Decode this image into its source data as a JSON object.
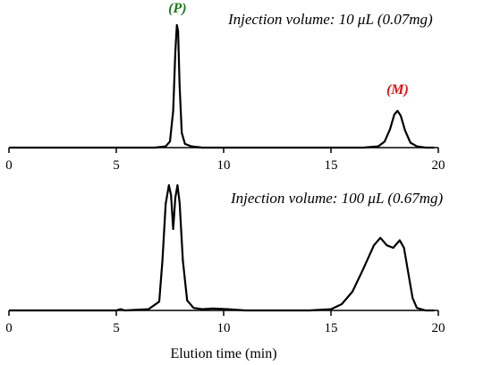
{
  "chart_data": [
    {
      "type": "line",
      "annotation": "Injection volume: 10 μL (0.07mg)",
      "xlim": [
        0,
        20
      ],
      "x_ticks": [
        0,
        5,
        10,
        15,
        20
      ],
      "peak_labels": [
        {
          "text": "(P)",
          "x": 7.85,
          "color": "#1a7a1a"
        },
        {
          "text": "(M)",
          "x": 18.1,
          "color": "#e01010"
        }
      ],
      "series": [
        {
          "x": [
            0,
            6.8,
            7.3,
            7.5,
            7.65,
            7.75,
            7.82,
            7.88,
            7.95,
            8.05,
            8.2,
            8.5,
            9.0,
            12,
            16.5,
            17.2,
            17.5,
            17.75,
            17.95,
            18.1,
            18.25,
            18.45,
            18.7,
            19.0,
            19.4,
            19.8
          ],
          "y": [
            0,
            0,
            0.01,
            0.05,
            0.3,
            0.78,
            1.0,
            0.95,
            0.5,
            0.12,
            0.03,
            0.01,
            0,
            0,
            0,
            0.01,
            0.05,
            0.15,
            0.27,
            0.3,
            0.26,
            0.14,
            0.04,
            0.01,
            0,
            0
          ]
        }
      ]
    },
    {
      "type": "line",
      "annotation": "Injection volume: 100 μL (0.67mg)",
      "xlabel": "Elution time (min)",
      "xlim": [
        0,
        20
      ],
      "x_ticks": [
        0,
        5,
        10,
        15,
        20
      ],
      "series": [
        {
          "x": [
            0,
            5.0,
            5.2,
            5.4,
            6.5,
            7.0,
            7.15,
            7.3,
            7.45,
            7.55,
            7.65,
            7.75,
            7.85,
            7.95,
            8.1,
            8.3,
            8.6,
            9.0,
            9.5,
            10.2,
            11,
            14,
            15.0,
            15.5,
            16.0,
            16.5,
            17.0,
            17.3,
            17.6,
            17.9,
            18.2,
            18.4,
            18.6,
            18.8,
            19.0,
            19.4,
            19.8
          ],
          "y": [
            0,
            0,
            0.01,
            0,
            0.01,
            0.07,
            0.4,
            0.85,
            1.0,
            0.92,
            0.65,
            0.9,
            1.0,
            0.86,
            0.4,
            0.08,
            0.02,
            0.01,
            0.015,
            0.01,
            0,
            0,
            0.01,
            0.05,
            0.15,
            0.33,
            0.52,
            0.58,
            0.52,
            0.5,
            0.56,
            0.5,
            0.3,
            0.1,
            0.02,
            0,
            0
          ]
        }
      ]
    }
  ]
}
